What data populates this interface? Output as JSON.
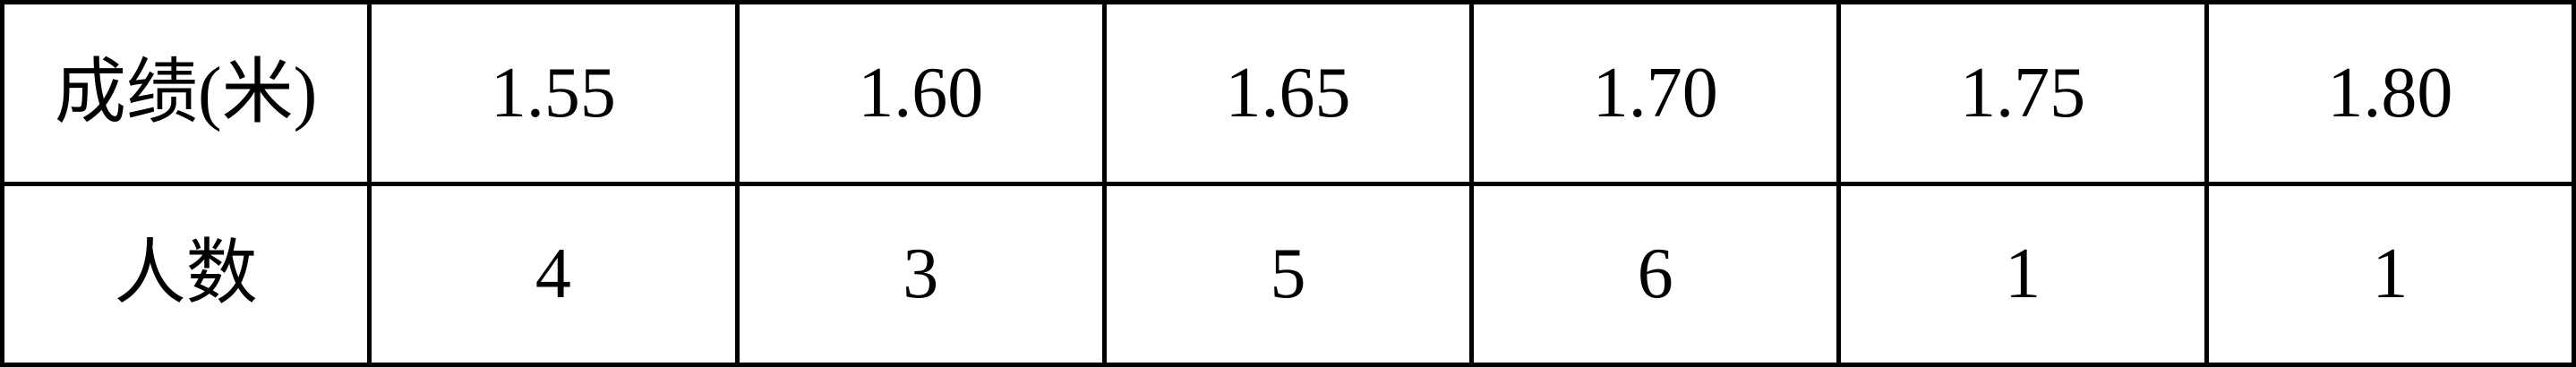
{
  "table": {
    "rows": [
      {
        "label": "成绩(米)",
        "cells": [
          "1.55",
          "1.60",
          "1.65",
          "1.70",
          "1.75",
          "1.80"
        ]
      },
      {
        "label": "人数",
        "cells": [
          "4",
          "3",
          "5",
          "6",
          "1",
          "1"
        ]
      }
    ]
  }
}
